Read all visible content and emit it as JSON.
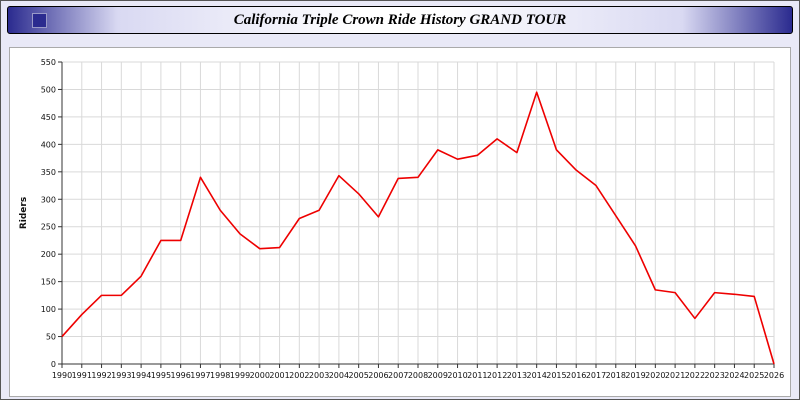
{
  "window": {
    "title": "California Triple Crown Ride History GRAND TOUR"
  },
  "chart_data": {
    "type": "line",
    "title": "California Triple Crown Ride History GRAND TOUR",
    "xlabel": "",
    "ylabel": "Riders",
    "ylim": [
      0,
      550
    ],
    "ytick_step": 50,
    "grid": true,
    "line_color": "#ee0000",
    "x": [
      1990,
      1991,
      1992,
      1993,
      1994,
      1995,
      1996,
      1997,
      1998,
      1999,
      2000,
      2001,
      2002,
      2003,
      2004,
      2005,
      2006,
      2007,
      2008,
      2009,
      2010,
      2011,
      2012,
      2013,
      2014,
      2015,
      2016,
      2017,
      2018,
      2019,
      2020,
      2021,
      2022,
      2023,
      2024,
      2025,
      2026
    ],
    "series": [
      {
        "name": "Riders",
        "values": [
          50,
          90,
          125,
          125,
          160,
          225,
          225,
          340,
          280,
          237,
          210,
          212,
          265,
          280,
          343,
          310,
          268,
          338,
          340,
          390,
          373,
          380,
          410,
          385,
          495,
          390,
          353,
          325,
          270,
          215,
          135,
          130,
          83,
          130,
          127,
          123,
          0
        ]
      }
    ]
  }
}
